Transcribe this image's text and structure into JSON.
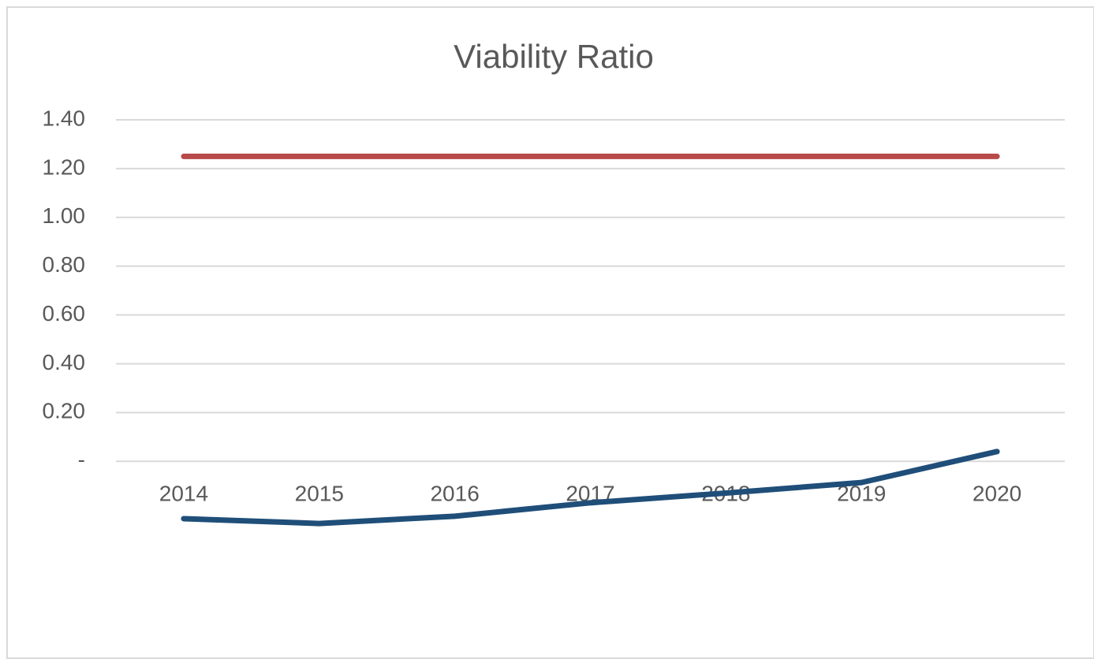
{
  "chart_data": {
    "type": "line",
    "title": "Viability Ratio",
    "categories": [
      "2014",
      "2015",
      "2016",
      "2017",
      "2018",
      "2019",
      "2020"
    ],
    "series": [
      {
        "color": "#b84a4a",
        "values": [
          1.25,
          1.25,
          1.25,
          1.25,
          1.25,
          1.25,
          1.25
        ]
      },
      {
        "color": "#1f4e79",
        "values": [
          -0.235,
          -0.255,
          -0.225,
          -0.17,
          -0.13,
          -0.087,
          0.04
        ]
      }
    ],
    "ylim": [
      -0.4,
      1.4
    ],
    "yticks": [
      {
        "value": 1.4,
        "label": "1.40"
      },
      {
        "value": 1.2,
        "label": "1.20"
      },
      {
        "value": 1.0,
        "label": "1.00"
      },
      {
        "value": 0.8,
        "label": "0.80"
      },
      {
        "value": 0.6,
        "label": "0.60"
      },
      {
        "value": 0.4,
        "label": "0.40"
      },
      {
        "value": 0.2,
        "label": "0.20"
      },
      {
        "value": 0,
        "label": "-"
      }
    ],
    "grid": true
  }
}
